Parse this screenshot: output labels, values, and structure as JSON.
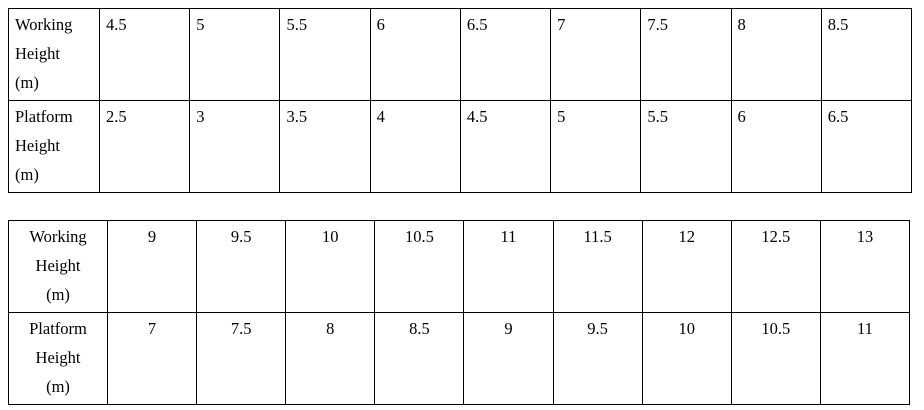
{
  "tables": [
    {
      "rows": [
        {
          "label": "Working\nHeight\n(m)",
          "values": [
            "4.5",
            "5",
            "5.5",
            "6",
            "6.5",
            "7",
            "7.5",
            "8",
            "8.5"
          ]
        },
        {
          "label": "Platform\nHeight\n(m)",
          "values": [
            "2.5",
            "3",
            "3.5",
            "4",
            "4.5",
            "5",
            "5.5",
            "6",
            "6.5"
          ]
        }
      ]
    },
    {
      "rows": [
        {
          "label": "Working\nHeight\n(m)",
          "values": [
            "9",
            "9.5",
            "10",
            "10.5",
            "11",
            "11.5",
            "12",
            "12.5",
            "13"
          ]
        },
        {
          "label": "Platform\nHeight\n(m)",
          "values": [
            "7",
            "7.5",
            "8",
            "8.5",
            "9",
            "9.5",
            "10",
            "10.5",
            "11"
          ]
        }
      ]
    }
  ]
}
